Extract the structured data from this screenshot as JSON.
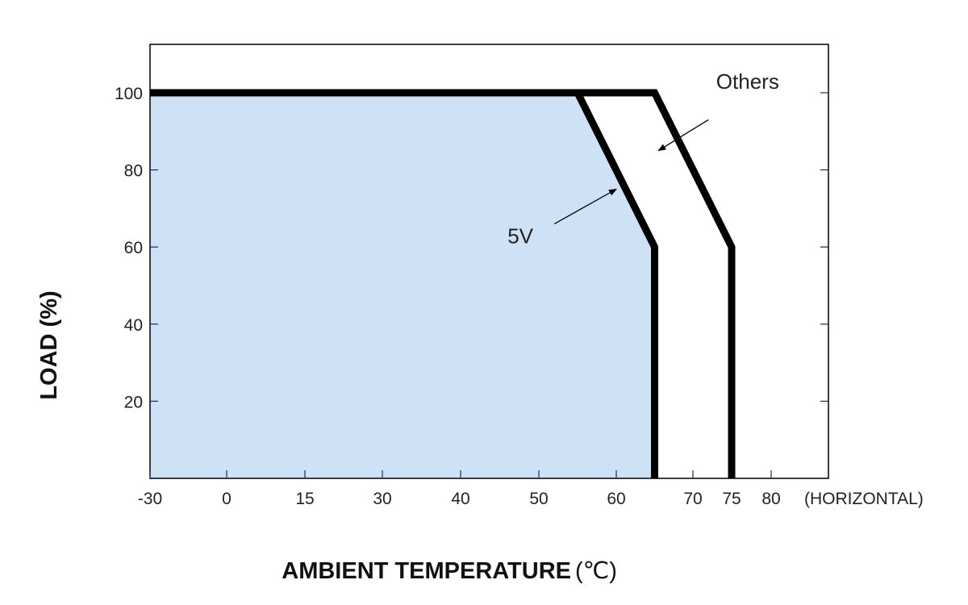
{
  "chart_data": {
    "type": "line",
    "xlabel": "AMBIENT TEMPERATURE",
    "xlabel_unit": "(℃)",
    "ylabel": "LOAD (%)",
    "x_suffix_label": "(HORIZONTAL)",
    "xlim": [
      -30,
      85
    ],
    "ylim": [
      0,
      112
    ],
    "x_ticks": [
      {
        "value": -30,
        "label": "-30"
      },
      {
        "value": 0,
        "label": "0"
      },
      {
        "value": 15,
        "label": "15"
      },
      {
        "value": 30,
        "label": "30"
      },
      {
        "value": 40,
        "label": "40"
      },
      {
        "value": 50,
        "label": "50"
      },
      {
        "value": 60,
        "label": "60"
      },
      {
        "value": 70,
        "label": "70"
      },
      {
        "value": 75,
        "label": "75"
      },
      {
        "value": 80,
        "label": "80"
      }
    ],
    "y_ticks": [
      {
        "value": 20,
        "label": "20"
      },
      {
        "value": 40,
        "label": "40"
      },
      {
        "value": 60,
        "label": "60"
      },
      {
        "value": 80,
        "label": "80"
      },
      {
        "value": 100,
        "label": "100"
      }
    ],
    "series": [
      {
        "name": "5V",
        "points": [
          [
            -30,
            100
          ],
          [
            55,
            100
          ],
          [
            65,
            60
          ],
          [
            65,
            0
          ]
        ],
        "fill_below": true
      },
      {
        "name": "Others",
        "points": [
          [
            -30,
            100
          ],
          [
            65,
            100
          ],
          [
            75,
            60
          ],
          [
            75,
            0
          ]
        ],
        "fill_below": false
      }
    ],
    "annotations": [
      {
        "text": "5V",
        "series": "5V",
        "label_at": [
          46,
          61
        ],
        "arrow_from": [
          52,
          66
        ],
        "arrow_to": [
          60,
          75
        ]
      },
      {
        "text": "Others",
        "series": "Others",
        "label_at": [
          73,
          101
        ],
        "arrow_from": [
          72,
          93
        ],
        "arrow_to": [
          65.5,
          85
        ]
      }
    ],
    "colors": {
      "fill": "#cfe1f4",
      "line": "#000000",
      "frame": "#000000"
    },
    "grid": false
  }
}
